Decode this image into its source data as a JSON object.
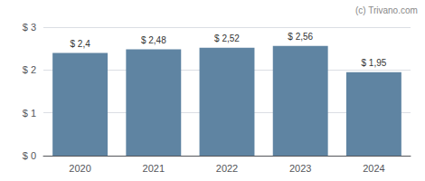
{
  "chart_data": {
    "type": "bar",
    "categories": [
      "2020",
      "2021",
      "2022",
      "2023",
      "2024"
    ],
    "values": [
      2.4,
      2.48,
      2.52,
      2.56,
      1.95
    ],
    "value_labels": [
      "$ 2,4",
      "$ 2,48",
      "$ 2,52",
      "$ 2,56",
      "$ 1,95"
    ],
    "data_labels": true,
    "color": "#5f84a2",
    "ylim": [
      0,
      3
    ],
    "yticks": [
      {
        "value": 0,
        "label": "$ 0"
      },
      {
        "value": 1,
        "label": "$ 1"
      },
      {
        "value": 2,
        "label": "$ 2"
      },
      {
        "value": 3,
        "label": "$ 3"
      }
    ],
    "grid": true,
    "annotation": "(c) Trivano.com"
  }
}
